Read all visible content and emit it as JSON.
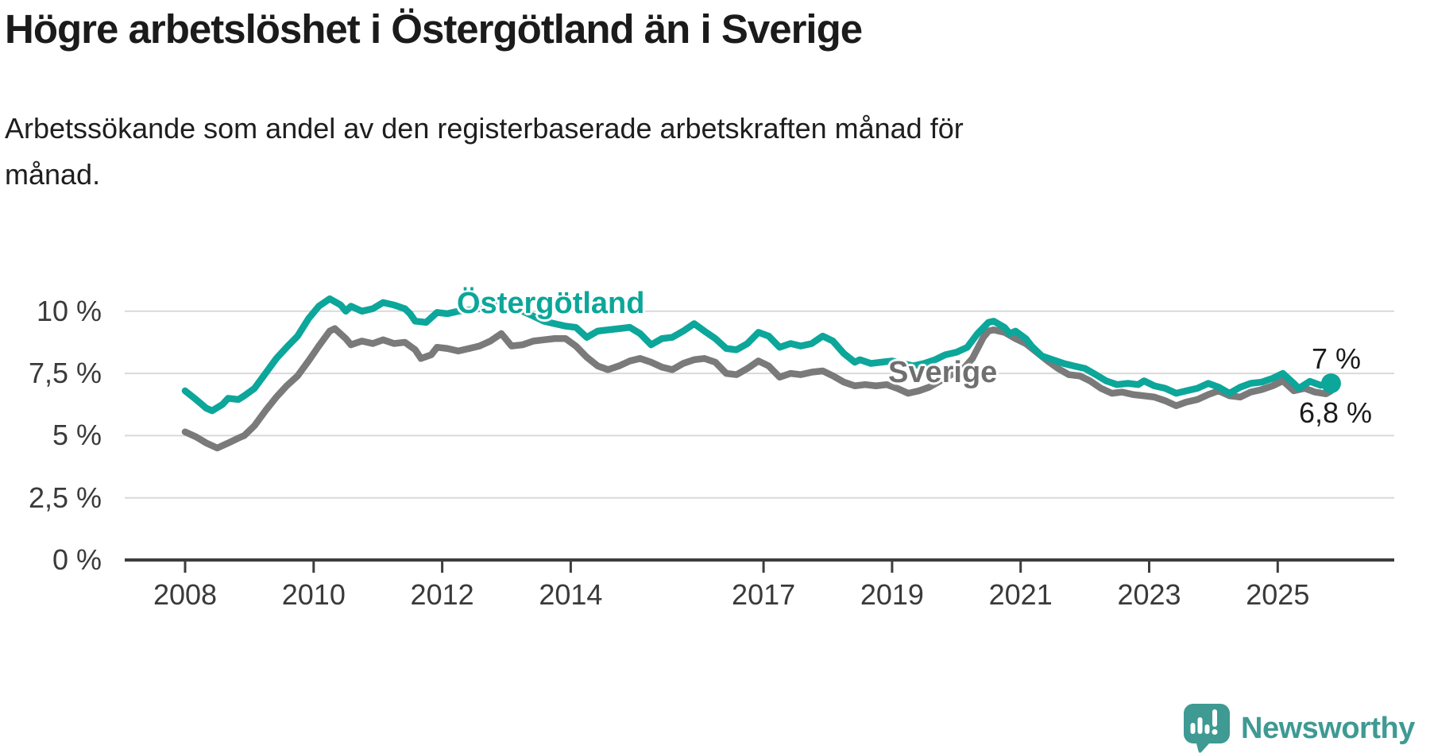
{
  "header": {
    "title": "Högre arbetslöshet i Östergötland än i Sverige",
    "subtitle_lines": [
      "Arbetssökande som andel av den registerbaserade arbetskraften månad för",
      "månad."
    ]
  },
  "chart_data": {
    "type": "line",
    "title": "Högre arbetslöshet i Östergötland än i Sverige",
    "xlabel": "",
    "ylabel": "Arbetssökande som andel av den registerbaserade arbetskraften",
    "grid": true,
    "legend": "inline-labels",
    "x_axis": {
      "ticks": [
        2008,
        2010,
        2012,
        2014,
        2017,
        2019,
        2021,
        2023,
        2025
      ],
      "range": [
        2008,
        2025.83
      ]
    },
    "y_axis": {
      "range": [
        0,
        10.5
      ],
      "unit": "%",
      "ticks": [
        {
          "value": 10,
          "label": "10 %"
        },
        {
          "value": 7.5,
          "label": "7,5 %"
        },
        {
          "value": 5,
          "label": "5 %"
        },
        {
          "value": 2.5,
          "label": "2,5 %"
        },
        {
          "value": 0,
          "label": "0 %"
        }
      ]
    },
    "series": [
      {
        "name": "Sverige",
        "color": "#7a7a7a",
        "points": [
          [
            2008.0,
            5.15
          ],
          [
            2008.17,
            4.95
          ],
          [
            2008.33,
            4.7
          ],
          [
            2008.5,
            4.5
          ],
          [
            2008.67,
            4.7
          ],
          [
            2008.83,
            4.9
          ],
          [
            2008.92,
            5.0
          ],
          [
            2009.08,
            5.4
          ],
          [
            2009.25,
            6.0
          ],
          [
            2009.42,
            6.55
          ],
          [
            2009.58,
            7.0
          ],
          [
            2009.75,
            7.4
          ],
          [
            2009.92,
            8.0
          ],
          [
            2010.08,
            8.6
          ],
          [
            2010.25,
            9.2
          ],
          [
            2010.33,
            9.3
          ],
          [
            2010.5,
            8.9
          ],
          [
            2010.58,
            8.65
          ],
          [
            2010.75,
            8.8
          ],
          [
            2010.92,
            8.7
          ],
          [
            2011.08,
            8.85
          ],
          [
            2011.25,
            8.7
          ],
          [
            2011.42,
            8.75
          ],
          [
            2011.58,
            8.45
          ],
          [
            2011.67,
            8.1
          ],
          [
            2011.83,
            8.25
          ],
          [
            2011.92,
            8.55
          ],
          [
            2012.08,
            8.5
          ],
          [
            2012.25,
            8.4
          ],
          [
            2012.42,
            8.5
          ],
          [
            2012.58,
            8.6
          ],
          [
            2012.75,
            8.8
          ],
          [
            2012.92,
            9.1
          ],
          [
            2013.08,
            8.6
          ],
          [
            2013.25,
            8.65
          ],
          [
            2013.42,
            8.8
          ],
          [
            2013.58,
            8.85
          ],
          [
            2013.75,
            8.9
          ],
          [
            2013.92,
            8.9
          ],
          [
            2014.08,
            8.6
          ],
          [
            2014.25,
            8.15
          ],
          [
            2014.42,
            7.8
          ],
          [
            2014.58,
            7.65
          ],
          [
            2014.75,
            7.8
          ],
          [
            2014.92,
            8.0
          ],
          [
            2015.08,
            8.1
          ],
          [
            2015.25,
            7.95
          ],
          [
            2015.42,
            7.75
          ],
          [
            2015.58,
            7.65
          ],
          [
            2015.75,
            7.9
          ],
          [
            2015.92,
            8.05
          ],
          [
            2016.08,
            8.1
          ],
          [
            2016.25,
            7.95
          ],
          [
            2016.42,
            7.5
          ],
          [
            2016.58,
            7.45
          ],
          [
            2016.75,
            7.7
          ],
          [
            2016.92,
            8.0
          ],
          [
            2017.08,
            7.8
          ],
          [
            2017.25,
            7.35
          ],
          [
            2017.42,
            7.5
          ],
          [
            2017.58,
            7.45
          ],
          [
            2017.75,
            7.55
          ],
          [
            2017.92,
            7.6
          ],
          [
            2018.08,
            7.4
          ],
          [
            2018.25,
            7.15
          ],
          [
            2018.42,
            7.0
          ],
          [
            2018.58,
            7.05
          ],
          [
            2018.75,
            7.0
          ],
          [
            2018.92,
            7.05
          ],
          [
            2019.08,
            6.9
          ],
          [
            2019.25,
            6.7
          ],
          [
            2019.42,
            6.8
          ],
          [
            2019.58,
            6.95
          ],
          [
            2019.75,
            7.2
          ],
          [
            2019.92,
            7.45
          ],
          [
            2020.08,
            7.6
          ],
          [
            2020.25,
            8.1
          ],
          [
            2020.42,
            8.95
          ],
          [
            2020.5,
            9.2
          ],
          [
            2020.58,
            9.25
          ],
          [
            2020.75,
            9.15
          ],
          [
            2020.92,
            8.9
          ],
          [
            2021.08,
            8.7
          ],
          [
            2021.25,
            8.35
          ],
          [
            2021.42,
            8.0
          ],
          [
            2021.58,
            7.7
          ],
          [
            2021.75,
            7.45
          ],
          [
            2021.92,
            7.4
          ],
          [
            2022.08,
            7.2
          ],
          [
            2022.25,
            6.9
          ],
          [
            2022.42,
            6.7
          ],
          [
            2022.58,
            6.75
          ],
          [
            2022.75,
            6.65
          ],
          [
            2022.92,
            6.6
          ],
          [
            2023.08,
            6.55
          ],
          [
            2023.25,
            6.4
          ],
          [
            2023.42,
            6.2
          ],
          [
            2023.58,
            6.35
          ],
          [
            2023.75,
            6.45
          ],
          [
            2023.92,
            6.65
          ],
          [
            2024.08,
            6.8
          ],
          [
            2024.25,
            6.6
          ],
          [
            2024.42,
            6.55
          ],
          [
            2024.58,
            6.75
          ],
          [
            2024.75,
            6.85
          ],
          [
            2024.92,
            7.0
          ],
          [
            2025.08,
            7.2
          ],
          [
            2025.25,
            6.8
          ],
          [
            2025.42,
            6.9
          ],
          [
            2025.58,
            6.75
          ],
          [
            2025.75,
            6.68
          ],
          [
            2025.83,
            6.8
          ]
        ]
      },
      {
        "name": "Östergötland",
        "color": "#0ca69a",
        "points": [
          [
            2008.0,
            6.8
          ],
          [
            2008.17,
            6.45
          ],
          [
            2008.33,
            6.1
          ],
          [
            2008.42,
            6.0
          ],
          [
            2008.58,
            6.25
          ],
          [
            2008.67,
            6.5
          ],
          [
            2008.83,
            6.45
          ],
          [
            2008.92,
            6.6
          ],
          [
            2009.08,
            6.9
          ],
          [
            2009.25,
            7.5
          ],
          [
            2009.42,
            8.1
          ],
          [
            2009.58,
            8.55
          ],
          [
            2009.75,
            9.0
          ],
          [
            2009.92,
            9.7
          ],
          [
            2010.08,
            10.2
          ],
          [
            2010.25,
            10.5
          ],
          [
            2010.42,
            10.25
          ],
          [
            2010.5,
            10.0
          ],
          [
            2010.58,
            10.2
          ],
          [
            2010.75,
            10.0
          ],
          [
            2010.92,
            10.1
          ],
          [
            2011.08,
            10.35
          ],
          [
            2011.25,
            10.25
          ],
          [
            2011.42,
            10.1
          ],
          [
            2011.5,
            9.9
          ],
          [
            2011.58,
            9.6
          ],
          [
            2011.75,
            9.55
          ],
          [
            2011.92,
            9.95
          ],
          [
            2012.08,
            9.9
          ],
          [
            2012.25,
            10.0
          ],
          [
            2012.42,
            10.05
          ],
          [
            2012.58,
            10.1
          ],
          [
            2012.75,
            10.2
          ],
          [
            2012.92,
            10.55
          ],
          [
            2013.08,
            10.3
          ],
          [
            2013.25,
            10.0
          ],
          [
            2013.42,
            9.8
          ],
          [
            2013.58,
            9.6
          ],
          [
            2013.75,
            9.5
          ],
          [
            2013.92,
            9.4
          ],
          [
            2014.08,
            9.35
          ],
          [
            2014.25,
            8.95
          ],
          [
            2014.42,
            9.2
          ],
          [
            2014.58,
            9.25
          ],
          [
            2014.75,
            9.3
          ],
          [
            2014.92,
            9.35
          ],
          [
            2015.08,
            9.1
          ],
          [
            2015.25,
            8.65
          ],
          [
            2015.42,
            8.9
          ],
          [
            2015.58,
            8.95
          ],
          [
            2015.75,
            9.2
          ],
          [
            2015.92,
            9.5
          ],
          [
            2016.08,
            9.2
          ],
          [
            2016.25,
            8.9
          ],
          [
            2016.42,
            8.5
          ],
          [
            2016.58,
            8.45
          ],
          [
            2016.75,
            8.7
          ],
          [
            2016.92,
            9.15
          ],
          [
            2017.08,
            9.0
          ],
          [
            2017.25,
            8.55
          ],
          [
            2017.42,
            8.7
          ],
          [
            2017.58,
            8.6
          ],
          [
            2017.75,
            8.7
          ],
          [
            2017.92,
            9.0
          ],
          [
            2018.08,
            8.8
          ],
          [
            2018.25,
            8.3
          ],
          [
            2018.42,
            7.95
          ],
          [
            2018.5,
            8.05
          ],
          [
            2018.67,
            7.9
          ],
          [
            2018.83,
            7.95
          ],
          [
            2019.0,
            8.0
          ],
          [
            2019.17,
            7.9
          ],
          [
            2019.33,
            7.8
          ],
          [
            2019.5,
            7.9
          ],
          [
            2019.67,
            8.05
          ],
          [
            2019.83,
            8.25
          ],
          [
            2020.0,
            8.35
          ],
          [
            2020.17,
            8.55
          ],
          [
            2020.33,
            9.1
          ],
          [
            2020.5,
            9.55
          ],
          [
            2020.58,
            9.6
          ],
          [
            2020.75,
            9.35
          ],
          [
            2020.83,
            9.1
          ],
          [
            2020.92,
            9.2
          ],
          [
            2021.08,
            8.9
          ],
          [
            2021.17,
            8.6
          ],
          [
            2021.33,
            8.2
          ],
          [
            2021.5,
            8.05
          ],
          [
            2021.67,
            7.9
          ],
          [
            2021.83,
            7.8
          ],
          [
            2022.0,
            7.7
          ],
          [
            2022.17,
            7.45
          ],
          [
            2022.33,
            7.2
          ],
          [
            2022.5,
            7.05
          ],
          [
            2022.67,
            7.1
          ],
          [
            2022.83,
            7.05
          ],
          [
            2022.92,
            7.2
          ],
          [
            2023.08,
            7.0
          ],
          [
            2023.25,
            6.9
          ],
          [
            2023.42,
            6.7
          ],
          [
            2023.58,
            6.8
          ],
          [
            2023.75,
            6.9
          ],
          [
            2023.92,
            7.1
          ],
          [
            2024.08,
            6.95
          ],
          [
            2024.25,
            6.7
          ],
          [
            2024.42,
            6.95
          ],
          [
            2024.58,
            7.1
          ],
          [
            2024.75,
            7.15
          ],
          [
            2024.92,
            7.3
          ],
          [
            2025.08,
            7.5
          ],
          [
            2025.25,
            7.1
          ],
          [
            2025.33,
            6.9
          ],
          [
            2025.5,
            7.18
          ],
          [
            2025.67,
            7.02
          ],
          [
            2025.83,
            7.1
          ]
        ]
      }
    ],
    "end_dot": {
      "series": "Östergötland",
      "x": 2025.83,
      "y": 7.1
    },
    "end_labels": [
      {
        "series": "Östergötland",
        "text": "7 %"
      },
      {
        "series": "Sverige",
        "text": "6,8 %"
      }
    ],
    "colors": {
      "grid": "#d9d9d9",
      "axis": "#3d3d3d",
      "axis_text": "#3a3a3a",
      "ostergotland": "#0ca69a",
      "sverige": "#7a7a7a",
      "sverige_label": "#6f6f6f"
    }
  },
  "footer": {
    "brand": "Newsworthy",
    "brand_color": "#3e9a93",
    "logo_icon": "speech-bubble-bar-chart-icon"
  }
}
